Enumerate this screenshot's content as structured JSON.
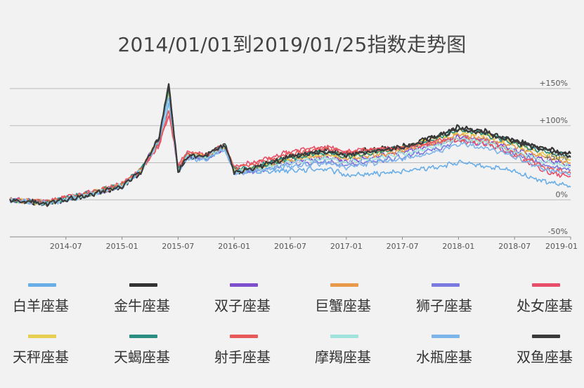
{
  "chart_data": {
    "type": "line",
    "title": "2014/01/01到2019/01/25指数走势图",
    "x_ticks": [
      "2014-07",
      "2015-01",
      "2015-07",
      "2016-01",
      "2016-07",
      "2017-01",
      "2017-07",
      "2018-01",
      "2018-07",
      "2019-01"
    ],
    "y_ticks": [
      "+150%",
      "+100%",
      "+50%",
      "0%",
      "-50%"
    ],
    "ylim": [
      -50,
      150
    ],
    "x_range": [
      "2014-01",
      "2019-01"
    ],
    "grid": true,
    "legend_position": "bottom",
    "anchors": {
      "x": [
        "2014-01",
        "2014-05",
        "2014-07",
        "2014-10",
        "2015-01",
        "2015-03",
        "2015-05",
        "2015-06",
        "2015-07",
        "2015-08",
        "2015-10",
        "2015-12",
        "2016-01",
        "2016-03",
        "2016-07",
        "2016-11",
        "2017-01",
        "2017-04",
        "2017-07",
        "2017-11",
        "2018-01",
        "2018-04",
        "2018-07",
        "2018-10",
        "2019-01"
      ],
      "series_values": [
        [
          0,
          -4,
          2,
          10,
          20,
          40,
          80,
          130,
          40,
          60,
          55,
          70,
          40,
          38,
          40,
          42,
          33,
          35,
          38,
          45,
          50,
          45,
          38,
          25,
          18
        ],
        [
          0,
          -5,
          0,
          8,
          18,
          38,
          85,
          155,
          38,
          58,
          60,
          75,
          38,
          42,
          58,
          68,
          62,
          68,
          72,
          88,
          98,
          92,
          80,
          70,
          62
        ],
        [
          0,
          -4,
          1,
          9,
          19,
          39,
          82,
          145,
          40,
          60,
          55,
          70,
          38,
          40,
          52,
          58,
          52,
          58,
          64,
          76,
          85,
          80,
          68,
          55,
          47
        ],
        [
          0,
          -4,
          2,
          10,
          20,
          40,
          80,
          140,
          42,
          62,
          58,
          72,
          40,
          42,
          54,
          60,
          55,
          60,
          66,
          79,
          88,
          83,
          72,
          58,
          50
        ],
        [
          0,
          -4,
          1,
          9,
          19,
          39,
          80,
          140,
          40,
          60,
          55,
          70,
          38,
          38,
          48,
          52,
          46,
          52,
          58,
          70,
          80,
          75,
          63,
          48,
          40
        ],
        [
          0,
          -3,
          3,
          11,
          21,
          40,
          75,
          115,
          45,
          65,
          60,
          74,
          44,
          50,
          65,
          72,
          65,
          68,
          70,
          78,
          80,
          76,
          60,
          40,
          30
        ],
        [
          0,
          -4,
          2,
          10,
          20,
          40,
          82,
          145,
          42,
          62,
          58,
          72,
          40,
          42,
          55,
          63,
          58,
          64,
          70,
          84,
          92,
          87,
          75,
          62,
          55
        ],
        [
          0,
          -4,
          2,
          10,
          20,
          40,
          83,
          150,
          41,
          61,
          58,
          73,
          41,
          44,
          56,
          64,
          58,
          64,
          70,
          84,
          94,
          88,
          76,
          65,
          58
        ],
        [
          0,
          -3,
          3,
          11,
          21,
          40,
          76,
          120,
          45,
          63,
          58,
          73,
          44,
          48,
          63,
          70,
          64,
          68,
          70,
          80,
          82,
          78,
          65,
          45,
          35
        ],
        [
          0,
          -4,
          1,
          9,
          19,
          39,
          80,
          140,
          40,
          60,
          56,
          71,
          39,
          40,
          50,
          56,
          50,
          56,
          62,
          74,
          83,
          78,
          66,
          52,
          45
        ],
        [
          0,
          -5,
          0,
          8,
          18,
          38,
          82,
          140,
          38,
          55,
          55,
          68,
          36,
          38,
          45,
          50,
          44,
          50,
          55,
          65,
          75,
          70,
          58,
          42,
          35
        ],
        [
          0,
          -5,
          0,
          8,
          18,
          38,
          86,
          155,
          38,
          58,
          60,
          74,
          38,
          42,
          58,
          66,
          60,
          66,
          70,
          86,
          96,
          90,
          78,
          68,
          60
        ]
      ]
    },
    "series": [
      {
        "name": "白羊座基",
        "color": "#6aaee8"
      },
      {
        "name": "金牛座基",
        "color": "#333333"
      },
      {
        "name": "双子座基",
        "color": "#7d4fcf"
      },
      {
        "name": "巨蟹座基",
        "color": "#e89a4a"
      },
      {
        "name": "狮子座基",
        "color": "#7a7ae0"
      },
      {
        "name": "处女座基",
        "color": "#e84e6a"
      },
      {
        "name": "天秤座基",
        "color": "#e6cf50"
      },
      {
        "name": "天蝎座基",
        "color": "#2a8f80"
      },
      {
        "name": "射手座基",
        "color": "#e85a5a"
      },
      {
        "name": "摩羯座基",
        "color": "#9fe3dc"
      },
      {
        "name": "水瓶座基",
        "color": "#7db4ea"
      },
      {
        "name": "双鱼座基",
        "color": "#3a3a3a"
      }
    ]
  }
}
